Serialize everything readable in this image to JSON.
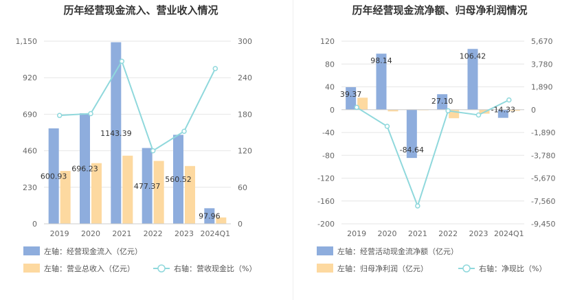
{
  "chart_data": [
    {
      "type": "bar",
      "title": "历年经营现金流入、营业收入情况",
      "categories": [
        "2019",
        "2020",
        "2021",
        "2022",
        "2023",
        "2024Q1"
      ],
      "series": [
        {
          "name": "左轴：经营现金流入（亿元）",
          "axis": "left",
          "kind": "bar",
          "color": "#8eaddd",
          "values": [
            600.93,
            696.23,
            1143.39,
            477.37,
            560.52,
            97.96
          ],
          "labels": [
            "600.93",
            "696.23",
            "1143.39",
            "477.37",
            "560.52",
            "97.96"
          ]
        },
        {
          "name": "左轴：营业总收入（亿元）",
          "axis": "left",
          "kind": "bar",
          "color": "#fdd9a0",
          "values": [
            333,
            382,
            429,
            396,
            364,
            40
          ]
        },
        {
          "name": "右轴：营收现金比（%）",
          "axis": "right",
          "kind": "line",
          "color": "#8fd8dc",
          "values": [
            178,
            181,
            267,
            120,
            152,
            255
          ]
        }
      ],
      "yaxis_left": {
        "ticks": [
          0,
          230,
          460,
          690,
          920,
          1150
        ],
        "tick_labels": [
          "0",
          "230",
          "460",
          "690",
          "920",
          "1,150"
        ],
        "ylim": [
          0,
          1150
        ]
      },
      "yaxis_right": {
        "ticks": [
          0,
          60,
          120,
          180,
          240,
          300
        ],
        "tick_labels": [
          "0",
          "60",
          "120",
          "180",
          "240",
          "300"
        ],
        "ylim": [
          0,
          300
        ]
      },
      "grid": true,
      "legend_position": "bottom-left"
    },
    {
      "type": "bar",
      "title": "历年经营现金流净额、归母净利润情况",
      "categories": [
        "2019",
        "2020",
        "2021",
        "2022",
        "2023",
        "2024Q1"
      ],
      "series": [
        {
          "name": "左轴：经营活动现金流净额（亿元）",
          "axis": "left",
          "kind": "bar",
          "color": "#8eaddd",
          "values": [
            39.37,
            98.14,
            -84.64,
            27.1,
            106.42,
            -14.33
          ],
          "labels": [
            "39.37",
            "98.14",
            "-84.64",
            "27.10",
            "106.42",
            "-14.33"
          ]
        },
        {
          "name": "左轴：归母净利润（亿元）",
          "axis": "left",
          "kind": "bar",
          "color": "#fdd9a0",
          "values": [
            21,
            -3,
            -1,
            -15,
            -7,
            -2
          ]
        },
        {
          "name": "右轴：净现比（%）",
          "axis": "right",
          "kind": "line",
          "color": "#8fd8dc",
          "values": [
            189,
            -1380,
            -7970,
            -95,
            -440,
            801
          ]
        }
      ],
      "yaxis_left": {
        "ticks": [
          -200,
          -160,
          -120,
          -80,
          -40,
          0,
          40,
          80,
          120
        ],
        "tick_labels": [
          "-200",
          "-160",
          "-120",
          "-80",
          "-40",
          "0",
          "40",
          "80",
          "120"
        ],
        "ylim": [
          -200,
          120
        ]
      },
      "yaxis_right": {
        "ticks": [
          -9450,
          -7560,
          -5670,
          -3780,
          -1890,
          0,
          1890,
          3780,
          5670
        ],
        "tick_labels": [
          "-9,450",
          "-7,560",
          "-5,670",
          "-3,780",
          "-1,890",
          "0",
          "1,890",
          "3,780",
          "5,670"
        ],
        "ylim": [
          -9450,
          5670
        ]
      },
      "grid": true,
      "legend_position": "bottom-left"
    }
  ]
}
